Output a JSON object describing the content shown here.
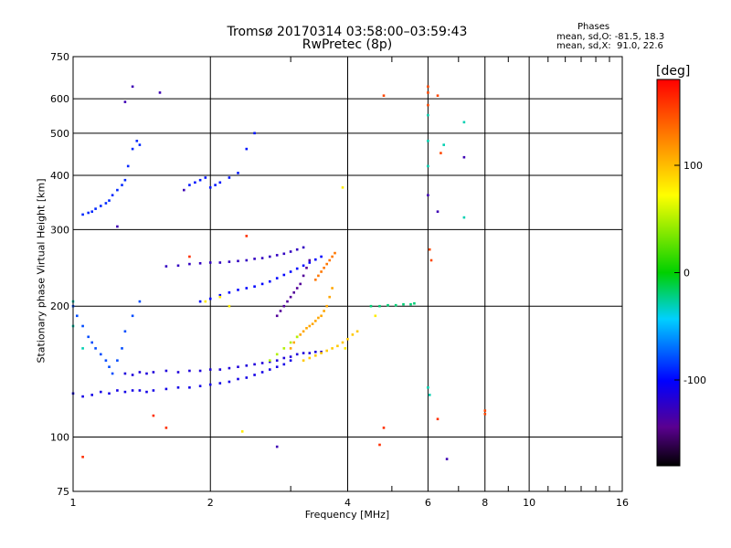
{
  "chart_data": {
    "type": "scatter",
    "title": "Tromsø 20170314 03:58:00–03:59:43",
    "subtitle": "RwPretec (8p)",
    "stats": {
      "heading": "Phases",
      "line_o": "mean, sd,O: -81.5, 18.3",
      "line_x": "mean, sd,X:  91.0, 22.6"
    },
    "xlabel": "Frequency [MHz]",
    "ylabel": "Stationary phase Virtual Height [km]",
    "x_scale": "log",
    "y_scale": "log",
    "xlim": [
      1,
      16
    ],
    "ylim": [
      75,
      750
    ],
    "x_ticks": [
      1,
      2,
      4,
      6,
      8,
      10,
      16
    ],
    "y_ticks": [
      75,
      100,
      200,
      300,
      400,
      500,
      600,
      750
    ],
    "grid": true,
    "colorbar": {
      "label": "[deg]",
      "range": [
        -180,
        180
      ],
      "ticks": [
        100,
        0,
        -100
      ]
    },
    "series": [
      {
        "name": "",
        "color_phase": -110,
        "x": [
          1.0,
          1.05,
          1.1,
          1.15,
          1.2,
          1.25,
          1.3,
          1.35,
          1.4,
          1.45,
          1.5,
          1.6,
          1.7,
          1.8,
          1.9,
          2.0,
          2.1,
          2.2,
          2.3,
          2.4,
          2.5,
          2.6,
          2.7,
          2.8,
          2.9,
          3.0
        ],
        "y": [
          126,
          124,
          125,
          127,
          126,
          128,
          127,
          128,
          128,
          127,
          128,
          129,
          130,
          130,
          131,
          132,
          133,
          134,
          136,
          137,
          139,
          141,
          143,
          145,
          147,
          150
        ]
      },
      {
        "name": "",
        "color_phase": -115,
        "x": [
          1.3,
          1.35,
          1.4,
          1.45,
          1.5,
          1.6,
          1.7,
          1.8,
          1.9,
          2.0,
          2.1,
          2.2,
          2.3,
          2.4,
          2.5,
          2.6,
          2.7,
          2.8,
          2.9,
          3.0,
          3.1,
          3.2,
          3.3,
          3.4,
          3.5
        ],
        "y": [
          140,
          139,
          141,
          140,
          141,
          142,
          141,
          142,
          142,
          143,
          143,
          144,
          145,
          146,
          147,
          148,
          149,
          150,
          152,
          153,
          155,
          156,
          156,
          157,
          157
        ]
      },
      {
        "name": "",
        "color_phase": -80,
        "x": [
          1.0,
          1.02,
          1.05,
          1.08,
          1.1,
          1.12,
          1.15,
          1.18,
          1.2,
          1.22,
          1.25,
          1.28,
          1.3,
          1.35,
          1.4
        ],
        "y": [
          200,
          190,
          180,
          170,
          165,
          160,
          155,
          150,
          145,
          140,
          150,
          160,
          175,
          190,
          205
        ]
      },
      {
        "name": "",
        "color_phase": -125,
        "x": [
          1.6,
          1.7,
          1.8,
          1.9,
          2.0,
          2.1,
          2.2,
          2.3,
          2.4,
          2.5,
          2.6,
          2.7,
          2.8,
          2.9,
          3.0,
          3.1,
          3.2
        ],
        "y": [
          247,
          248,
          250,
          251,
          252,
          252,
          253,
          254,
          255,
          257,
          258,
          260,
          262,
          264,
          267,
          270,
          273
        ]
      },
      {
        "name": "",
        "color_phase": -100,
        "x": [
          1.9,
          2.0,
          2.1,
          2.2,
          2.3,
          2.4,
          2.5,
          2.6,
          2.7,
          2.8,
          2.9,
          3.0,
          3.1,
          3.2,
          3.3,
          3.4,
          3.5
        ],
        "y": [
          205,
          208,
          212,
          215,
          218,
          220,
          222,
          225,
          228,
          232,
          236,
          240,
          244,
          248,
          252,
          256,
          260
        ]
      },
      {
        "name": "",
        "color_phase": -90,
        "x": [
          1.05,
          1.08,
          1.1,
          1.12,
          1.15,
          1.18,
          1.2,
          1.22,
          1.25,
          1.28,
          1.3,
          1.32,
          1.35,
          1.38,
          1.4
        ],
        "y": [
          325,
          328,
          330,
          335,
          340,
          345,
          350,
          360,
          370,
          380,
          390,
          420,
          460,
          480,
          470
        ]
      },
      {
        "name": "",
        "color_phase": -95,
        "x": [
          1.8,
          1.85,
          1.9,
          1.95,
          2.0,
          2.05,
          2.1,
          2.2,
          2.3,
          2.4,
          2.5
        ],
        "y": [
          380,
          385,
          390,
          395,
          375,
          380,
          385,
          395,
          405,
          460,
          500
        ]
      },
      {
        "name": "",
        "color_phase": -140,
        "x": [
          2.8,
          2.85,
          2.9,
          2.95,
          3.0,
          3.05,
          3.1,
          3.15,
          3.2,
          3.25,
          3.3
        ],
        "y": [
          190,
          195,
          200,
          205,
          210,
          215,
          220,
          225,
          235,
          245,
          255
        ]
      },
      {
        "name": "",
        "color_phase": 110,
        "x": [
          3.0,
          3.05,
          3.1,
          3.15,
          3.2,
          3.25,
          3.3,
          3.35,
          3.4,
          3.45,
          3.5,
          3.55,
          3.6,
          3.65,
          3.7
        ],
        "y": [
          160,
          165,
          170,
          172,
          175,
          178,
          180,
          182,
          185,
          188,
          190,
          195,
          200,
          210,
          220
        ]
      },
      {
        "name": "",
        "color_phase": 95,
        "x": [
          3.2,
          3.3,
          3.4,
          3.5,
          3.6,
          3.7,
          3.8,
          3.9,
          4.0,
          4.1,
          4.2
        ],
        "y": [
          150,
          152,
          154,
          156,
          158,
          160,
          162,
          165,
          168,
          172,
          175
        ]
      },
      {
        "name": "",
        "color_phase": 130,
        "x": [
          3.4,
          3.45,
          3.5,
          3.55,
          3.6,
          3.65,
          3.7,
          3.75
        ],
        "y": [
          230,
          235,
          240,
          245,
          250,
          255,
          260,
          265
        ]
      },
      {
        "name": "",
        "color_phase": 50,
        "x": [
          2.7,
          2.8,
          2.9,
          3.0,
          3.1
        ],
        "y": [
          150,
          155,
          160,
          165,
          170
        ]
      },
      {
        "name": "",
        "color_phase": -20,
        "x": [
          4.5,
          4.7,
          4.9,
          5.1,
          5.3,
          5.5,
          5.6
        ],
        "y": [
          200,
          200,
          201,
          201,
          202,
          202,
          203
        ]
      },
      {
        "name": "",
        "color_phase": 150,
        "x": [
          4.8,
          6.0,
          6.0,
          6.0,
          6.05,
          6.1,
          6.3,
          6.4,
          8.0,
          8.0
        ],
        "y": [
          610,
          640,
          620,
          580,
          270,
          255,
          610,
          450,
          115,
          113
        ]
      },
      {
        "name": "",
        "color_phase": -30,
        "x": [
          6.0,
          6.0,
          6.0,
          6.0,
          6.05,
          6.5,
          7.2,
          7.2,
          1.0,
          1.0,
          1.05
        ],
        "y": [
          550,
          480,
          420,
          130,
          125,
          470,
          320,
          530,
          205,
          180,
          160
        ]
      },
      {
        "name": "",
        "color_phase": -130,
        "x": [
          1.35,
          1.3,
          1.55,
          6.6,
          2.8,
          6.3,
          6.0,
          7.2,
          1.25,
          1.75
        ],
        "y": [
          640,
          590,
          620,
          89,
          95,
          330,
          360,
          440,
          305,
          370
        ]
      },
      {
        "name": "",
        "color_phase": 160,
        "x": [
          1.6,
          1.8,
          2.4,
          4.7,
          4.8,
          6.3,
          1.05,
          1.5
        ],
        "y": [
          105,
          260,
          290,
          96,
          105,
          110,
          90,
          112
        ]
      },
      {
        "name": "",
        "color_phase": 80,
        "x": [
          1.95,
          2.1,
          2.2,
          2.35,
          3.9,
          3.95,
          4.6
        ],
        "y": [
          205,
          210,
          200,
          103,
          375,
          160,
          190
        ]
      }
    ]
  }
}
